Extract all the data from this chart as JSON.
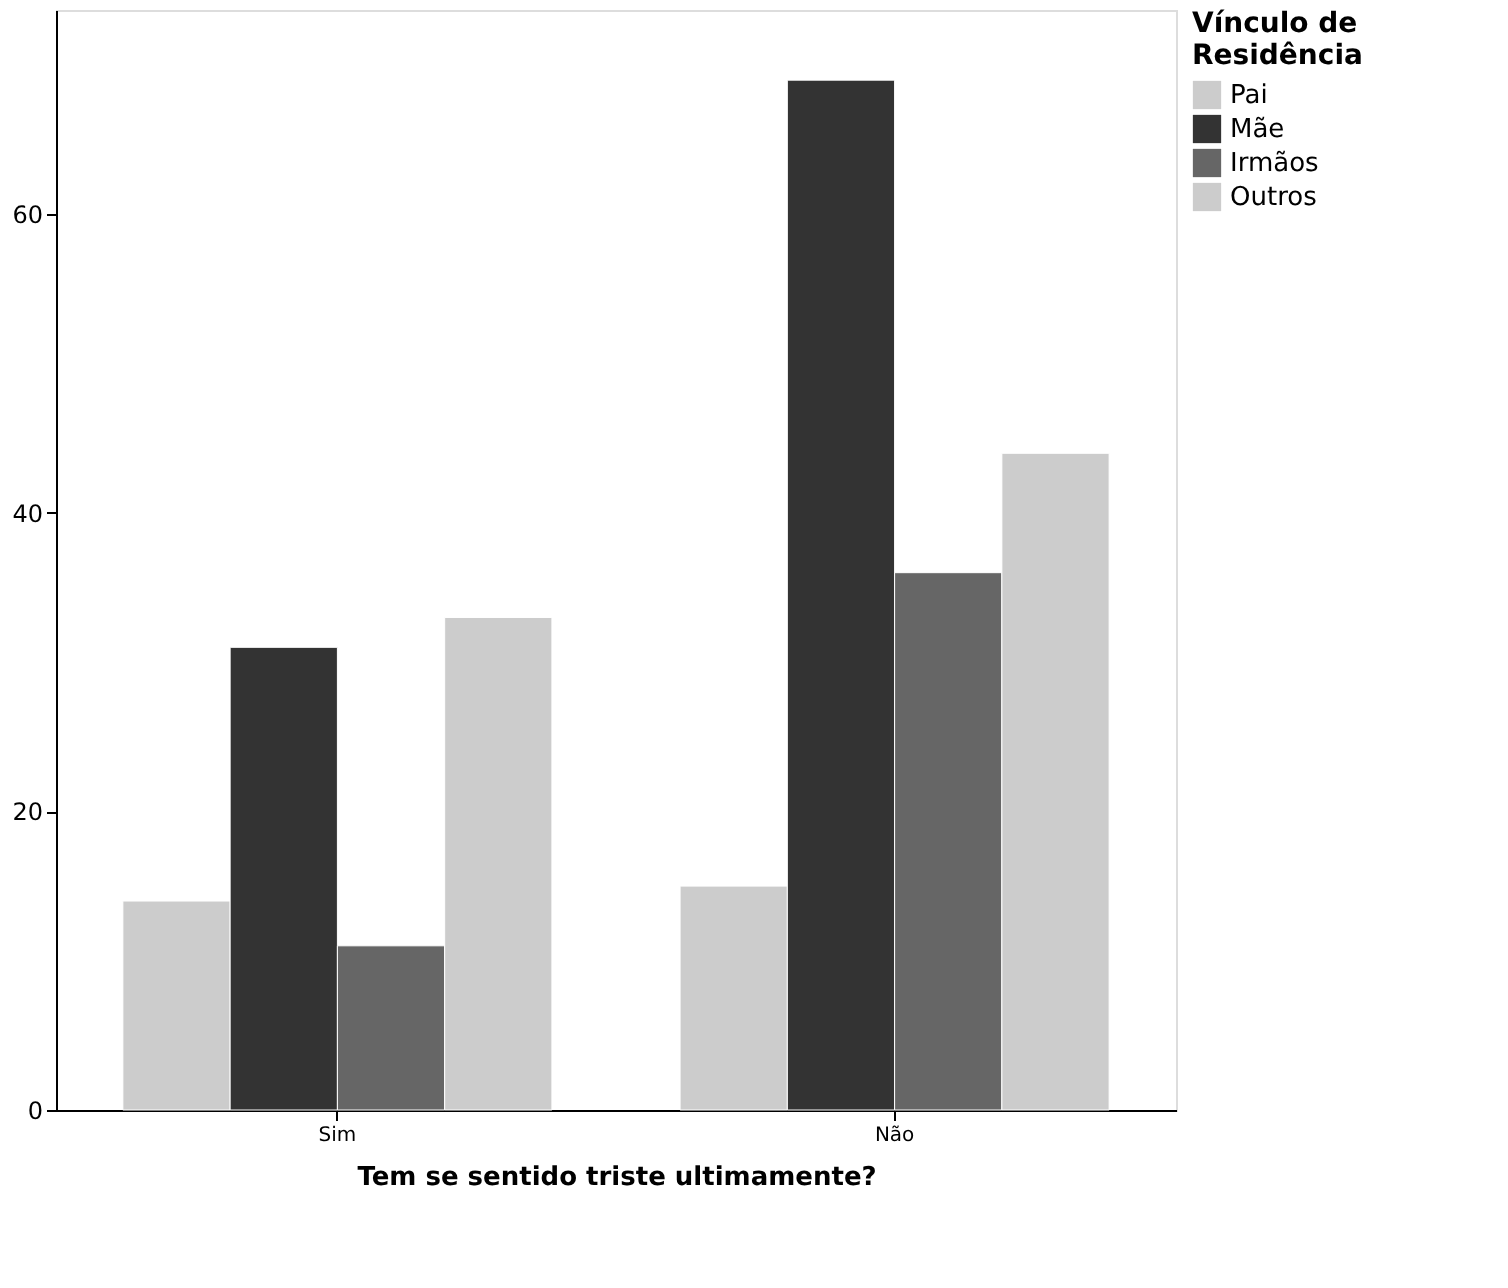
{
  "chart_data": {
    "type": "bar",
    "xlabel": "Tem se sentido triste ultimamente?",
    "legend_title": "Vínculo de Residência",
    "categories": [
      "Sim",
      "Não"
    ],
    "series": [
      {
        "name": "Pai",
        "color": "#cccccc",
        "values": [
          14,
          15
        ]
      },
      {
        "name": "Mãe",
        "color": "#333333",
        "values": [
          31,
          69
        ]
      },
      {
        "name": "Irmãos",
        "color": "#666666",
        "values": [
          11,
          36
        ]
      },
      {
        "name": "Outros",
        "color": "#cccccc",
        "values": [
          33,
          44
        ]
      }
    ],
    "ylim": [
      0,
      73.7
    ],
    "yticks": [
      0,
      20,
      40,
      60
    ],
    "grid": false,
    "legend": "right"
  }
}
